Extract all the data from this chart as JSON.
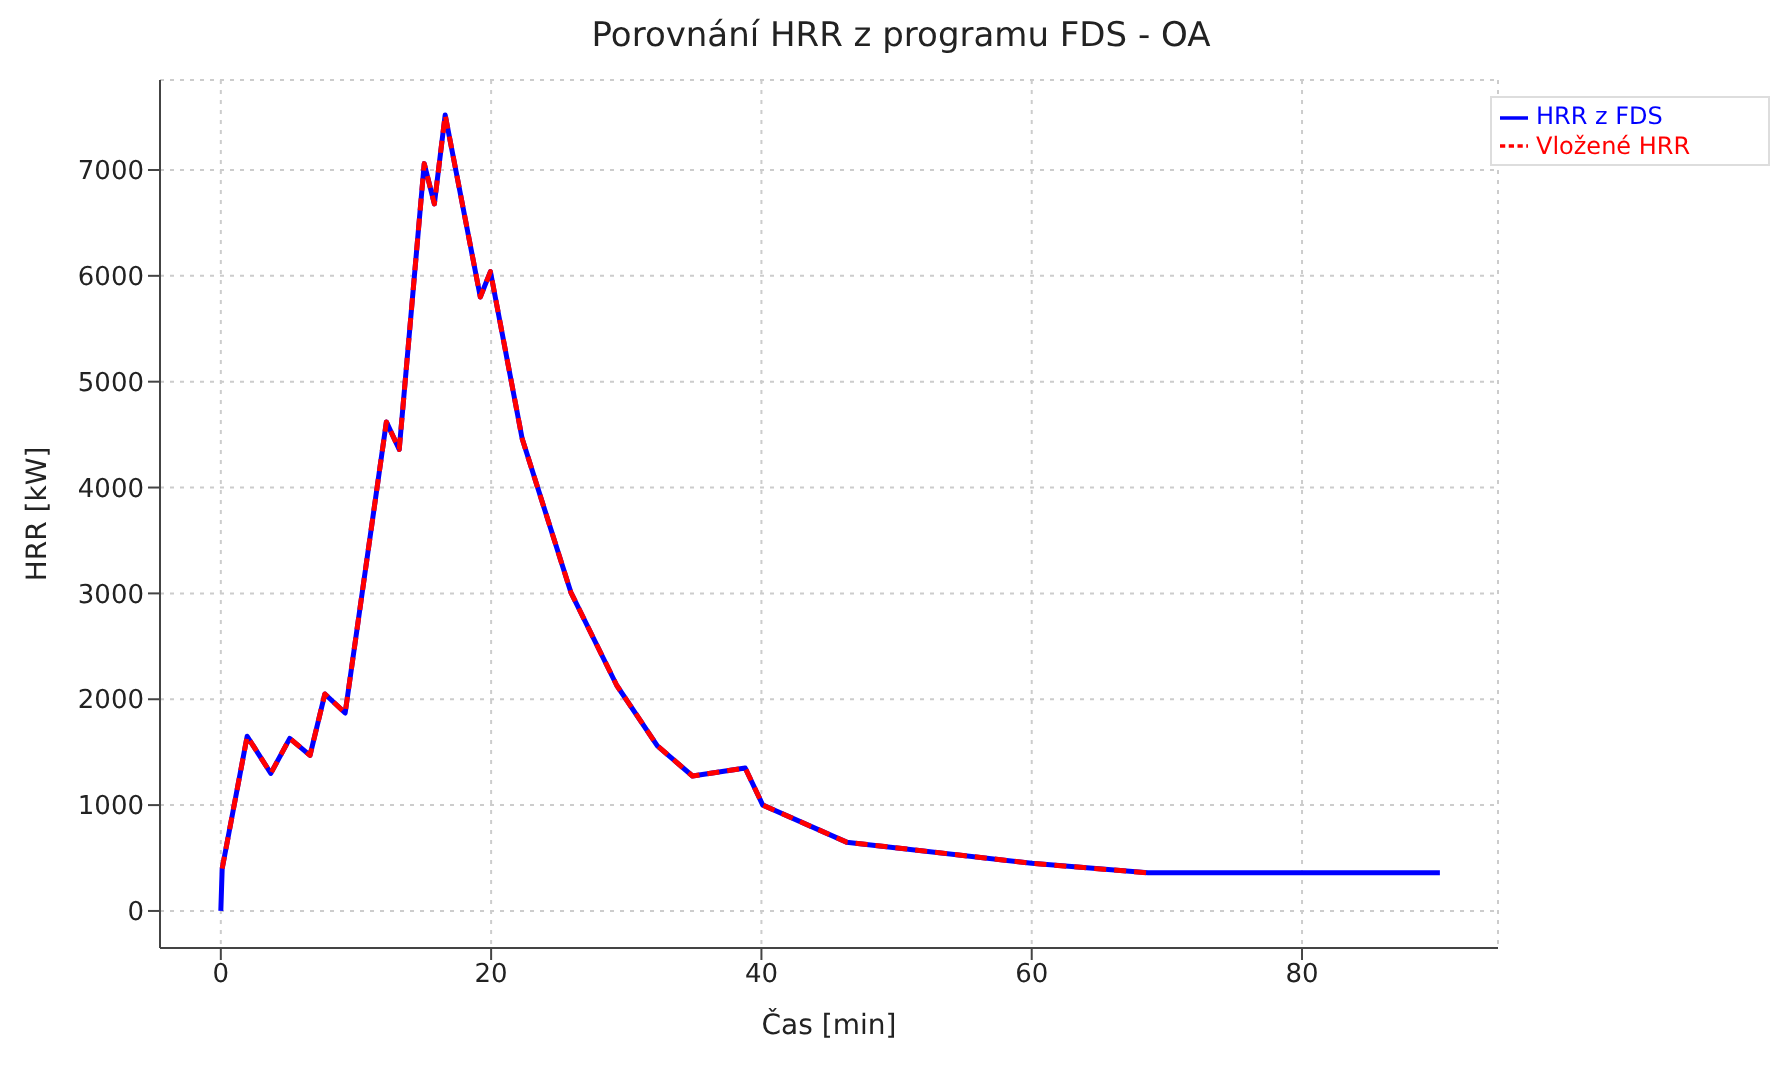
{
  "chart_data": {
    "type": "line",
    "title": "Porovnání HRR z programu FDS - OA",
    "xlabel": "Čas [min]",
    "ylabel": "HRR [kW]",
    "xlim": [
      -4.5,
      94.5
    ],
    "ylim": [
      -350,
      7850
    ],
    "xticks": [
      0,
      20,
      40,
      60,
      80
    ],
    "yticks": [
      0,
      1000,
      2000,
      3000,
      4000,
      5000,
      6000,
      7000
    ],
    "grid": true,
    "legend": "top right",
    "series": [
      {
        "name": "HRR z FDS",
        "color": "#0000ff",
        "line_style": "solid",
        "x": [
          0,
          0.1,
          1.95,
          3.7,
          5.1,
          6.6,
          7.7,
          9.2,
          12.25,
          13.2,
          15.05,
          15.8,
          16.6,
          19.2,
          19.95,
          22.3,
          25.9,
          29.3,
          32.3,
          34.9,
          38.8,
          40.1,
          46.3,
          60,
          68.6,
          90.2
        ],
        "values": [
          0,
          400,
          1650,
          1300,
          1630,
          1470,
          2050,
          1870,
          4620,
          4360,
          7060,
          6680,
          7520,
          5800,
          6040,
          4460,
          3010,
          2130,
          1560,
          1275,
          1350,
          1000,
          650,
          450,
          360,
          360
        ]
      },
      {
        "name": "Vložené HRR",
        "color": "#ff0000",
        "line_style": "dashed",
        "x": [
          0.1,
          1.95,
          3.7,
          5.1,
          6.6,
          7.7,
          9.2,
          12.25,
          13.2,
          15.05,
          15.8,
          16.6,
          19.2,
          19.95,
          22.3,
          25.9,
          29.3,
          32.3,
          34.9,
          38.8,
          40.1,
          46.3,
          60,
          68.6
        ],
        "values": [
          400,
          1650,
          1300,
          1630,
          1470,
          2050,
          1870,
          4620,
          4360,
          7060,
          6680,
          7520,
          5800,
          6040,
          4460,
          3010,
          2130,
          1560,
          1275,
          1350,
          1000,
          650,
          450,
          360
        ]
      }
    ]
  }
}
